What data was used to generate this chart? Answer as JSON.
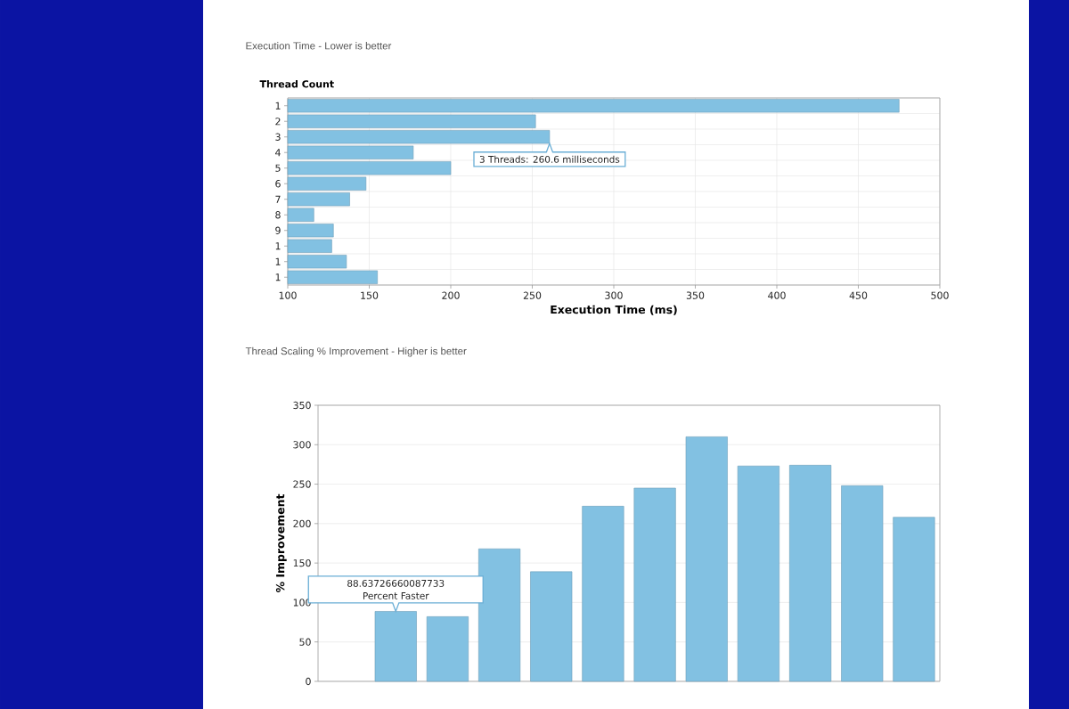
{
  "chart_data": [
    {
      "type": "bar",
      "orientation": "horizontal",
      "title": "Execution Time - Lower is better",
      "ylabel": "Thread Count",
      "xlabel": "Execution Time (ms)",
      "categories": [
        "1",
        "2",
        "3",
        "4",
        "5",
        "6",
        "7",
        "8",
        "9",
        "1",
        "1",
        "1"
      ],
      "values": [
        475,
        252,
        260.6,
        177,
        200,
        148,
        138,
        116,
        128,
        127,
        136,
        155
      ],
      "color": "#82c1e2",
      "xlim": [
        100,
        500
      ],
      "xticks": [
        100,
        150,
        200,
        250,
        300,
        350,
        400,
        450,
        500
      ],
      "grid": true,
      "annotations": [
        {
          "text": "3 Threads: 260.6 milliseconds",
          "x": 260.6,
          "y": "3"
        }
      ]
    },
    {
      "type": "bar",
      "title": "Thread Scaling % Improvement - Higher is better",
      "ylabel": "% Improvement",
      "categories": [
        null,
        null,
        null,
        null,
        null,
        null,
        null,
        null,
        null,
        null,
        null,
        null
      ],
      "values": [
        null,
        88.63726660087733,
        82,
        168,
        139,
        222,
        245,
        310,
        273,
        274,
        248,
        208
      ],
      "color": "#82c1e2",
      "ylim": [
        0,
        350
      ],
      "yticks": [
        0,
        50,
        100,
        150,
        200,
        250,
        300,
        350
      ],
      "grid": true,
      "annotations": [
        {
          "text": "88.63726660087733 Percent Faster",
          "y": 88.63726660087733
        }
      ]
    }
  ]
}
